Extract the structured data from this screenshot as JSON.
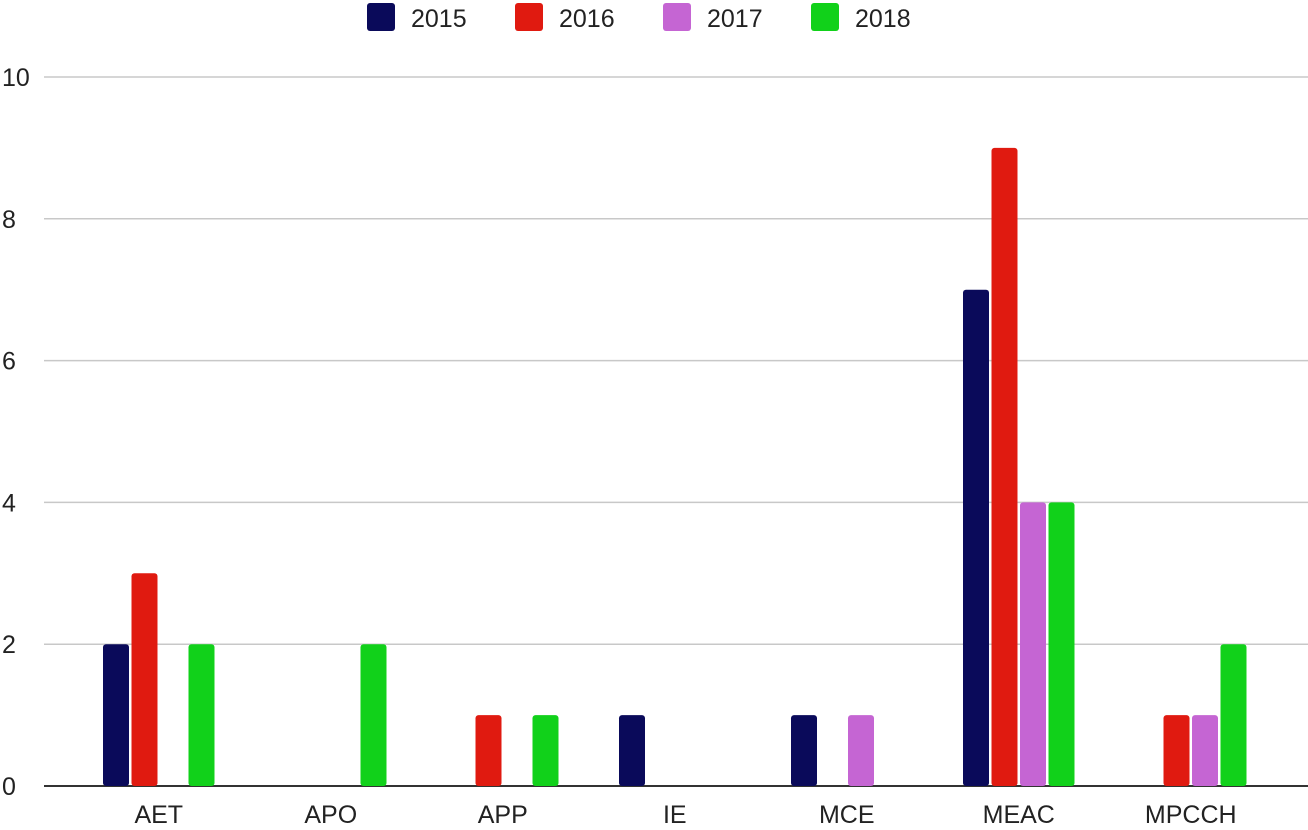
{
  "chart_data": {
    "type": "bar",
    "title": "",
    "xlabel": "",
    "ylabel": "",
    "categories": [
      "AET",
      "APO",
      "APP",
      "IE",
      "MCE",
      "MEAC",
      "MPCCH"
    ],
    "series": [
      {
        "name": "2015",
        "color": "#0a0a5a",
        "values": [
          2,
          0,
          0,
          1,
          1,
          7,
          0
        ]
      },
      {
        "name": "2016",
        "color": "#e01a10",
        "values": [
          3,
          0,
          1,
          0,
          0,
          9,
          1
        ]
      },
      {
        "name": "2017",
        "color": "#c565d3",
        "values": [
          0,
          0,
          0,
          0,
          1,
          4,
          1
        ]
      },
      {
        "name": "2018",
        "color": "#11d11a",
        "values": [
          2,
          2,
          1,
          0,
          0,
          4,
          2
        ]
      }
    ],
    "ylim": [
      0,
      10
    ],
    "yticks": [
      "0",
      "2",
      "4",
      "6",
      "8",
      "10"
    ],
    "grid": true,
    "legend_position": "top-center"
  }
}
